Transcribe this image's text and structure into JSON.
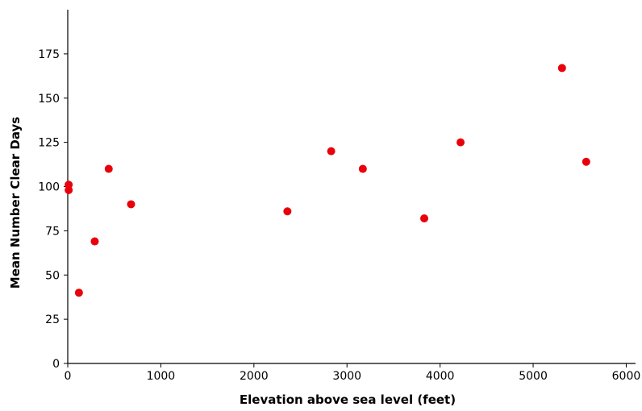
{
  "chart_data": {
    "type": "scatter",
    "title": "",
    "xlabel": "Elevation above sea level (feet)",
    "ylabel": "Mean Number Clear Days",
    "xlim": [
      0,
      6100
    ],
    "ylim": [
      0,
      200
    ],
    "xticks": [
      0,
      1000,
      2000,
      3000,
      4000,
      5000,
      6000
    ],
    "yticks": [
      0,
      25,
      50,
      75,
      100,
      125,
      150,
      175
    ],
    "grid": false,
    "marker_color": "#e8000b",
    "series": [
      {
        "points": [
          {
            "x": 10,
            "y": 101
          },
          {
            "x": 10,
            "y": 98
          },
          {
            "x": 120,
            "y": 40
          },
          {
            "x": 290,
            "y": 69
          },
          {
            "x": 440,
            "y": 110
          },
          {
            "x": 680,
            "y": 90
          },
          {
            "x": 2360,
            "y": 86
          },
          {
            "x": 2830,
            "y": 120
          },
          {
            "x": 3170,
            "y": 110
          },
          {
            "x": 3830,
            "y": 82
          },
          {
            "x": 4220,
            "y": 125
          },
          {
            "x": 5310,
            "y": 167
          },
          {
            "x": 5570,
            "y": 114
          }
        ]
      }
    ]
  }
}
